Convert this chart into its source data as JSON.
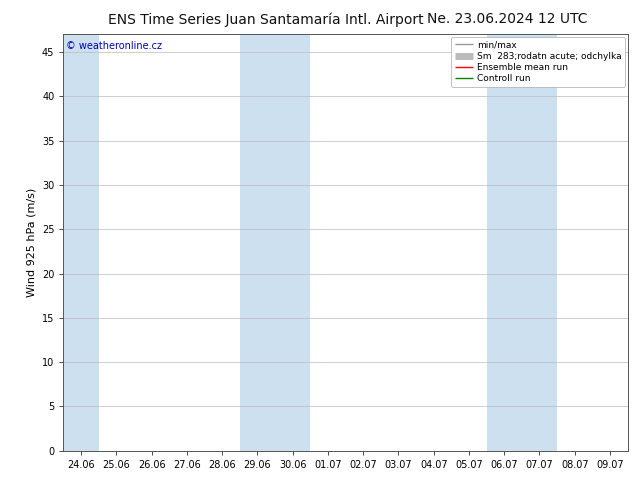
{
  "title": "ENS Time Series Juan Santamaría Intl. Airport",
  "date_str": "Ne. 23.06.2024 12 UTC",
  "ylabel": "Wind 925 hPa (m/s)",
  "watermark": "© weatheronline.cz",
  "x_labels": [
    "24.06",
    "25.06",
    "26.06",
    "27.06",
    "28.06",
    "29.06",
    "30.06",
    "01.07",
    "02.07",
    "03.07",
    "04.07",
    "05.07",
    "06.07",
    "07.07",
    "08.07",
    "09.07"
  ],
  "x_positions": [
    0,
    1,
    2,
    3,
    4,
    5,
    6,
    7,
    8,
    9,
    10,
    11,
    12,
    13,
    14,
    15
  ],
  "ylim": [
    0,
    47
  ],
  "yticks": [
    0,
    5,
    10,
    15,
    20,
    25,
    30,
    35,
    40,
    45
  ],
  "shaded_columns": [
    0,
    5,
    6,
    12,
    13
  ],
  "shaded_color": "#cce0f0",
  "bg_color": "#ffffff",
  "plot_bg_color": "#ffffff",
  "grid_color": "#bbbbbb",
  "legend_items": [
    {
      "label": "min/max",
      "color": "#999999",
      "lw": 1.0
    },
    {
      "label": "Sm  283;rodatn acute; odchylka",
      "color": "#bbbbbb",
      "lw": 5
    },
    {
      "label": "Ensemble mean run",
      "color": "#ff0000",
      "lw": 1.0
    },
    {
      "label": "Controll run",
      "color": "#008000",
      "lw": 1.0
    }
  ],
  "title_fontsize": 10,
  "date_fontsize": 10,
  "axis_label_fontsize": 8,
  "tick_fontsize": 7,
  "watermark_fontsize": 7,
  "watermark_color": "#0000bb",
  "legend_fontsize": 6.5
}
